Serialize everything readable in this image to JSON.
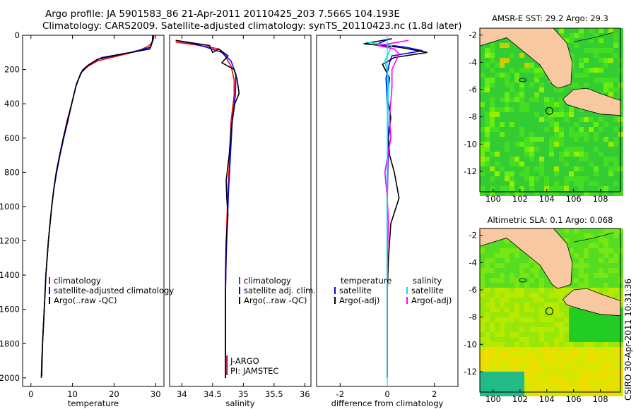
{
  "header": {
    "title_line1": "Argo profile: JA 5901583_86 21-Apr-2011 20110425_203 7.566S 104.193E",
    "title_line2": "Climatology: CARS2009. Satellite-adjusted climatology: synTS_20110423.nc (1.8d later)"
  },
  "credit": "CSIRO 30-Apr-2011 10:31:36",
  "colors": {
    "climatology": "#ff0000",
    "satellite": "#0000ff",
    "argo": "#000000",
    "sal_satellite": "#00e5ee",
    "sal_argo": "#ff00ff"
  },
  "chart_data": [
    {
      "id": "temperature",
      "type": "line",
      "xlabel": "temperature",
      "ylabel": "",
      "xlim": [
        -2,
        32
      ],
      "ylim": [
        2050,
        0
      ],
      "xticks": [
        0,
        10,
        20,
        30
      ],
      "yticks": [
        0,
        200,
        400,
        600,
        800,
        1000,
        1200,
        1400,
        1600,
        1800,
        2000
      ],
      "legend": [
        "climatology",
        "satellite-adjusted climatology",
        "Argo(..raw -QC)"
      ],
      "series": [
        {
          "name": "climatology",
          "color": "#ff0000",
          "points": [
            [
              29.6,
              0
            ],
            [
              29.4,
              30
            ],
            [
              28.5,
              60
            ],
            [
              26,
              90
            ],
            [
              21,
              120
            ],
            [
              16,
              150
            ],
            [
              13.8,
              180
            ],
            [
              12,
              220
            ],
            [
              10.8,
              300
            ],
            [
              9.8,
              400
            ],
            [
              8.7,
              500
            ],
            [
              7.8,
              600
            ],
            [
              6.9,
              700
            ],
            [
              6.1,
              800
            ],
            [
              5.5,
              900
            ],
            [
              5.0,
              1000
            ],
            [
              4.6,
              1100
            ],
            [
              4.2,
              1200
            ],
            [
              3.9,
              1300
            ],
            [
              3.6,
              1400
            ],
            [
              3.4,
              1500
            ],
            [
              3.2,
              1600
            ],
            [
              3.0,
              1700
            ],
            [
              2.8,
              1800
            ],
            [
              2.6,
              1900
            ],
            [
              2.5,
              2000
            ]
          ]
        },
        {
          "name": "satellite-adjusted climatology",
          "color": "#0000ff",
          "points": [
            [
              29.5,
              0
            ],
            [
              29.3,
              30
            ],
            [
              28.8,
              70
            ],
            [
              24,
              100
            ],
            [
              17,
              130
            ],
            [
              14,
              170
            ],
            [
              12.5,
              200
            ],
            [
              11,
              280
            ],
            [
              10,
              380
            ],
            [
              8.9,
              500
            ],
            [
              7.9,
              600
            ],
            [
              7.0,
              700
            ],
            [
              6.2,
              800
            ],
            [
              5.5,
              900
            ],
            [
              5.0,
              1000
            ],
            [
              4.6,
              1100
            ],
            [
              4.2,
              1200
            ],
            [
              3.9,
              1300
            ],
            [
              3.6,
              1400
            ],
            [
              3.4,
              1500
            ],
            [
              3.2,
              1600
            ],
            [
              3.0,
              1700
            ],
            [
              2.8,
              1800
            ],
            [
              2.6,
              1900
            ],
            [
              2.5,
              2000
            ]
          ]
        },
        {
          "name": "Argo(..raw -QC)",
          "color": "#000000",
          "points": [
            [
              29.3,
              0
            ],
            [
              29.2,
              40
            ],
            [
              28.6,
              80
            ],
            [
              22,
              110
            ],
            [
              16,
              140
            ],
            [
              13.5,
              180
            ],
            [
              12,
              220
            ],
            [
              10.8,
              300
            ],
            [
              9.8,
              400
            ],
            [
              8.8,
              500
            ],
            [
              7.8,
              600
            ],
            [
              6.9,
              700
            ],
            [
              6.1,
              800
            ],
            [
              5.5,
              900
            ],
            [
              5.0,
              1000
            ],
            [
              4.6,
              1100
            ],
            [
              4.2,
              1200
            ],
            [
              3.9,
              1300
            ],
            [
              3.6,
              1400
            ],
            [
              3.4,
              1500
            ],
            [
              3.2,
              1600
            ],
            [
              3.0,
              1700
            ],
            [
              2.8,
              1800
            ],
            [
              2.7,
              1900
            ],
            [
              2.6,
              1990
            ]
          ]
        }
      ]
    },
    {
      "id": "salinity",
      "type": "line",
      "xlabel": "salinity",
      "ylabel": "",
      "xlim": [
        33.8,
        36.1
      ],
      "ylim": [
        2050,
        0
      ],
      "xticks": [
        34,
        34.5,
        35,
        35.5,
        36
      ],
      "yticks": [],
      "legend": [
        "climatology",
        "satellite adj. clim.",
        "Argo(..raw -QC)"
      ],
      "annotations": [
        "J-ARGO",
        "PI: JAMSTEC"
      ],
      "series": [
        {
          "name": "climatology",
          "color": "#ff0000",
          "points": [
            [
              33.9,
              40
            ],
            [
              34.3,
              60
            ],
            [
              34.6,
              80
            ],
            [
              34.7,
              120
            ],
            [
              34.8,
              180
            ],
            [
              34.85,
              260
            ],
            [
              34.85,
              350
            ],
            [
              34.8,
              500
            ],
            [
              34.78,
              700
            ],
            [
              34.75,
              900
            ],
            [
              34.73,
              1100
            ],
            [
              34.72,
              1300
            ],
            [
              34.71,
              1500
            ],
            [
              34.71,
              1700
            ],
            [
              34.71,
              1900
            ],
            [
              34.71,
              2000
            ]
          ]
        },
        {
          "name": "satellite adj. clim.",
          "color": "#0000ff",
          "points": [
            [
              33.9,
              30
            ],
            [
              34.2,
              50
            ],
            [
              34.4,
              70
            ],
            [
              34.65,
              100
            ],
            [
              34.8,
              150
            ],
            [
              34.88,
              230
            ],
            [
              34.87,
              350
            ],
            [
              34.82,
              500
            ],
            [
              34.79,
              700
            ],
            [
              34.76,
              900
            ],
            [
              34.74,
              1100
            ],
            [
              34.72,
              1300
            ],
            [
              34.71,
              1500
            ],
            [
              34.71,
              1700
            ],
            [
              34.71,
              1900
            ],
            [
              34.71,
              2000
            ]
          ]
        },
        {
          "name": "Argo(..raw -QC)",
          "color": "#000000",
          "points": [
            [
              33.9,
              30
            ],
            [
              34.45,
              60
            ],
            [
              34.5,
              100
            ],
            [
              34.6,
              80
            ],
            [
              34.75,
              120
            ],
            [
              34.65,
              160
            ],
            [
              34.85,
              200
            ],
            [
              34.9,
              260
            ],
            [
              34.93,
              340
            ],
            [
              34.86,
              400
            ],
            [
              34.8,
              550
            ],
            [
              34.77,
              700
            ],
            [
              34.72,
              850
            ],
            [
              34.73,
              950
            ],
            [
              34.75,
              1050
            ],
            [
              34.72,
              1200
            ],
            [
              34.71,
              1400
            ],
            [
              34.71,
              1700
            ],
            [
              34.71,
              2000
            ]
          ]
        }
      ]
    },
    {
      "id": "difference",
      "type": "line",
      "xlabel": "difference from climatology",
      "ylabel": "",
      "xlim": [
        -3,
        3
      ],
      "ylim": [
        2050,
        0
      ],
      "xticks": [
        -2,
        0,
        2
      ],
      "yticks": [],
      "legend_left": {
        "title": "temperature",
        "items": [
          "satellite",
          "Argo(-adj)"
        ]
      },
      "legend_right": {
        "title": "salinity",
        "items": [
          "satellite",
          "Argo(-adj)"
        ]
      },
      "series": [
        {
          "name": "temperature satellite",
          "color": "#0000ff",
          "points": [
            [
              0.1,
              20
            ],
            [
              -0.4,
              50
            ],
            [
              0.8,
              70
            ],
            [
              1.5,
              90
            ],
            [
              0.2,
              120
            ],
            [
              0.1,
              160
            ],
            [
              -0.05,
              250
            ],
            [
              0.0,
              400
            ],
            [
              0.05,
              600
            ],
            [
              0.02,
              800
            ],
            [
              0.0,
              1000
            ],
            [
              0.0,
              1300
            ],
            [
              0.0,
              1600
            ],
            [
              0.0,
              2000
            ]
          ]
        },
        {
          "name": "temperature Argo(-adj)",
          "color": "#000000",
          "points": [
            [
              0.2,
              20
            ],
            [
              -1.0,
              50
            ],
            [
              0.5,
              70
            ],
            [
              1.7,
              100
            ],
            [
              0.3,
              130
            ],
            [
              -0.2,
              170
            ],
            [
              0.1,
              250
            ],
            [
              0.0,
              350
            ],
            [
              0.15,
              480
            ],
            [
              0.05,
              600
            ],
            [
              0.1,
              700
            ],
            [
              0.3,
              800
            ],
            [
              0.5,
              950
            ],
            [
              0.15,
              1100
            ],
            [
              0.05,
              1300
            ],
            [
              0.0,
              1500
            ],
            [
              0.0,
              1800
            ],
            [
              0.0,
              2000
            ]
          ]
        },
        {
          "name": "salinity satellite",
          "color": "#00e5ee",
          "points": [
            [
              -0.9,
              40
            ],
            [
              0.2,
              60
            ],
            [
              0.1,
              90
            ],
            [
              -0.1,
              150
            ],
            [
              0.05,
              250
            ],
            [
              0.02,
              500
            ],
            [
              0.0,
              800
            ],
            [
              0.0,
              1200
            ],
            [
              0.0,
              1600
            ],
            [
              0.0,
              2000
            ]
          ]
        },
        {
          "name": "salinity Argo(-adj)",
          "color": "#ff00ff",
          "points": [
            [
              0.9,
              30
            ],
            [
              -0.4,
              60
            ],
            [
              0.3,
              80
            ],
            [
              0.5,
              110
            ],
            [
              0.2,
              200
            ],
            [
              0.2,
              300
            ],
            [
              0.1,
              480
            ],
            [
              0.15,
              600
            ],
            [
              -0.1,
              800
            ],
            [
              0.0,
              950
            ],
            [
              0.05,
              1100
            ],
            [
              0.0,
              1300
            ],
            [
              0.0,
              1700
            ],
            [
              0.0,
              2000
            ]
          ]
        }
      ]
    },
    {
      "id": "sst-map",
      "type": "heatmap",
      "title": "AMSR-E SST: 29.2 Argo: 29.3",
      "xlim": [
        99,
        109.5
      ],
      "ylim": [
        -13.5,
        -1.5
      ],
      "xticks": [
        100,
        102,
        104,
        106,
        108
      ],
      "yticks": [
        -2,
        -4,
        -6,
        -8,
        -10,
        -12
      ],
      "marker": {
        "lon": 104.193,
        "lat": -7.566
      }
    },
    {
      "id": "sla-map",
      "type": "heatmap",
      "title": "Altimetric SLA: 0.1 Argo: 0.068",
      "xlim": [
        99,
        109.5
      ],
      "ylim": [
        -13.5,
        -1.5
      ],
      "xticks": [
        100,
        102,
        104,
        106,
        108
      ],
      "yticks": [
        -2,
        -4,
        -6,
        -8,
        -10,
        -12
      ],
      "marker": {
        "lon": 104.193,
        "lat": -7.566
      }
    }
  ]
}
